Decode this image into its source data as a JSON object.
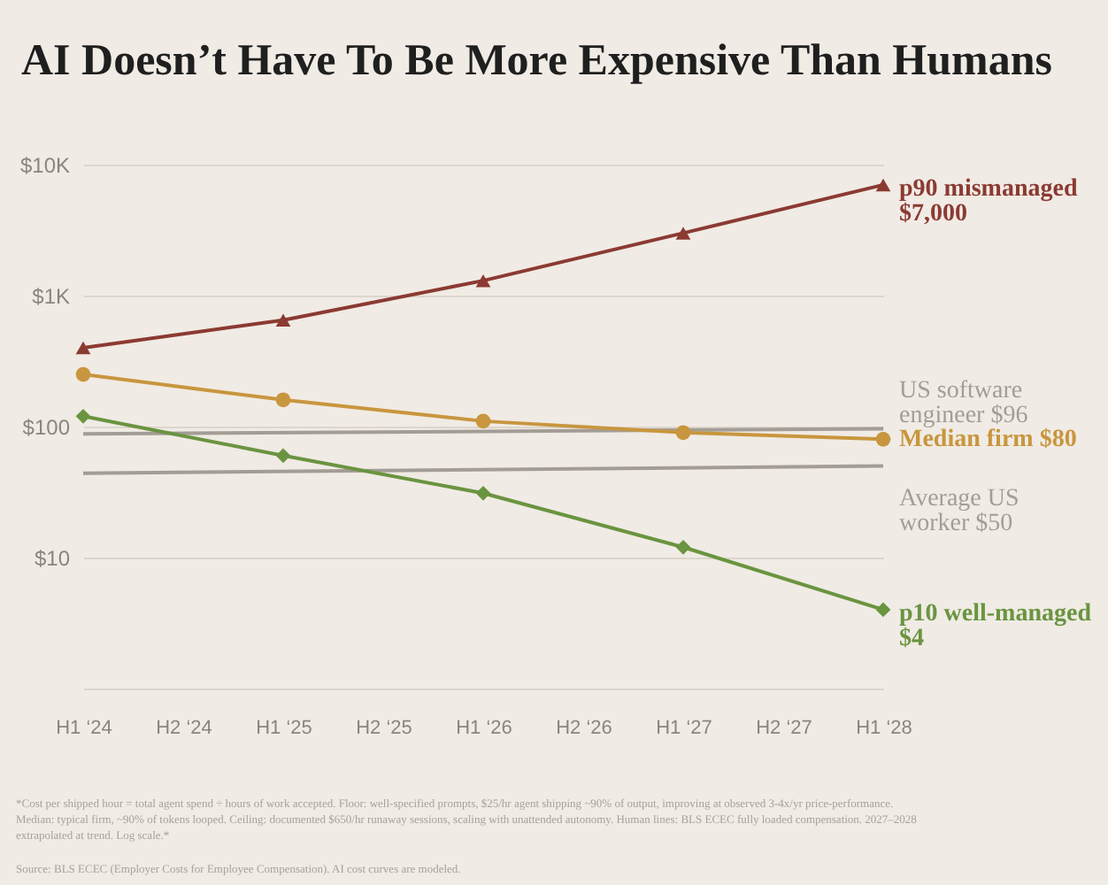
{
  "chart_data": {
    "type": "line",
    "title": "AI Doesn’t Have To Be More Expensive Than Humans",
    "categories": [
      "H1 ‘24",
      "H2 ‘24",
      "H1 ‘25",
      "H2 ‘25",
      "H1 ‘26",
      "H2 ‘26",
      "H1 ‘27",
      "H2 ‘27",
      "H1 ‘28"
    ],
    "series": [
      {
        "name": "p90 mismanaged",
        "color": "#8b3a32",
        "marker": "triangle",
        "values": [
          400,
          null,
          650,
          null,
          1300,
          null,
          3000,
          null,
          7000
        ],
        "value_labels": [
          null,
          null,
          null,
          null,
          null,
          null,
          null,
          null,
          "$7,000"
        ]
      },
      {
        "name": "US software engineer",
        "color": "#a39d95",
        "marker": "none",
        "values": [
          88,
          null,
          null,
          null,
          null,
          null,
          null,
          null,
          96
        ],
        "value_labels": [
          null,
          null,
          null,
          null,
          null,
          null,
          null,
          null,
          "$96"
        ]
      },
      {
        "name": "Median firm",
        "color": "#c8963e",
        "marker": "circle",
        "values": [
          250,
          null,
          160,
          null,
          110,
          null,
          90,
          null,
          80
        ],
        "value_labels": [
          null,
          null,
          null,
          null,
          null,
          null,
          null,
          null,
          "$80"
        ]
      },
      {
        "name": "Average US worker",
        "color": "#a39d95",
        "marker": "none",
        "values": [
          44,
          null,
          null,
          null,
          null,
          null,
          null,
          null,
          50
        ],
        "value_labels": [
          null,
          null,
          null,
          null,
          null,
          null,
          null,
          null,
          "$50"
        ]
      },
      {
        "name": "p10 well-managed",
        "color": "#6a9440",
        "marker": "diamond",
        "values": [
          120,
          null,
          60,
          null,
          31,
          null,
          12,
          null,
          4
        ],
        "value_labels": [
          null,
          null,
          null,
          null,
          null,
          null,
          null,
          null,
          "$4"
        ]
      }
    ],
    "log": true,
    "ylim": [
      1,
      10000
    ],
    "yticks": [
      {
        "value": 1,
        "label": null
      },
      {
        "value": 10,
        "label": "$10"
      },
      {
        "value": 100,
        "label": "$100"
      },
      {
        "value": 1000,
        "label": "$1K"
      },
      {
        "value": 10000,
        "label": "$10K"
      }
    ],
    "grid": "y",
    "legend": "right",
    "annotations": [
      "*Cost per shipped hour = total agent spend ÷ hours of work accepted. Floor: well-specified prompts, $25/hr agent shipping ~90% of output, improving at observed 3-4x/yr price-performance. Median: typical firm, ~90% of tokens looped. Ceiling: documented $650/hr runaway sessions, scaling with unattended autonomy. Human lines: BLS ECEC fully loaded compensation. 2027–2028 extrapolated at trend. Log scale.*",
      "Source: BLS ECEC (Employer Costs for Employee Compensation). AI cost curves are modeled."
    ]
  }
}
